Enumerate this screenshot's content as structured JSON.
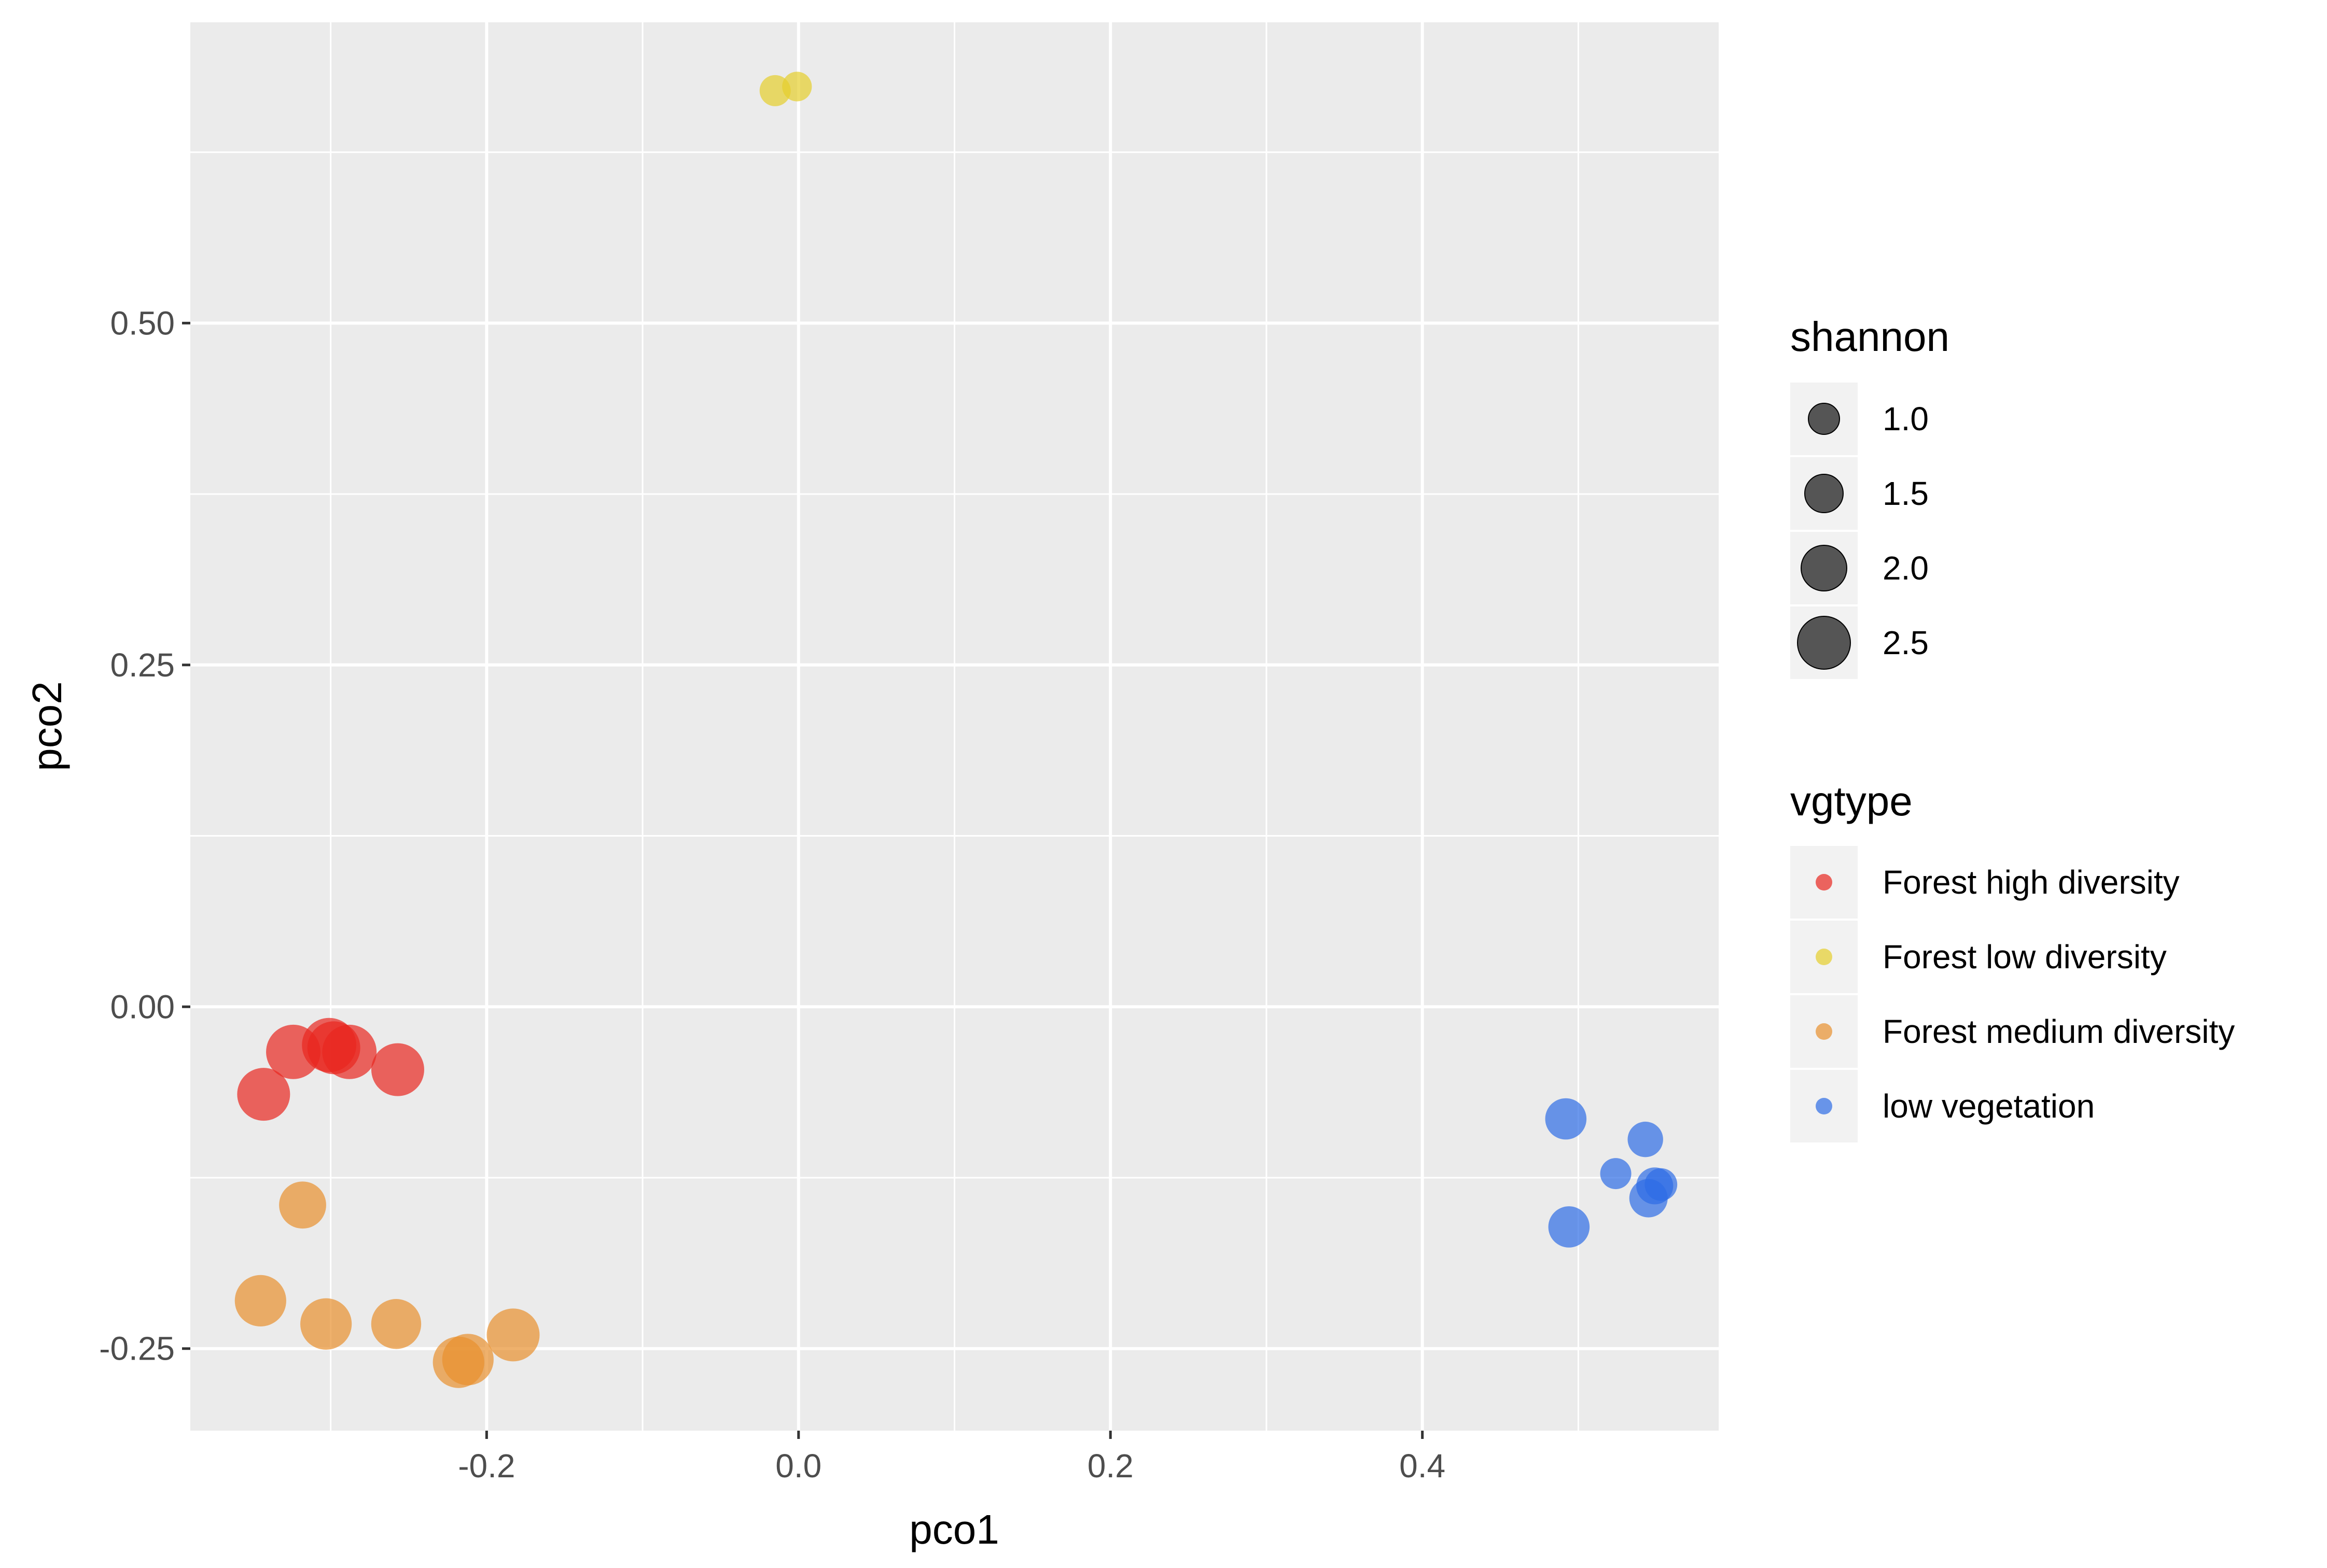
{
  "chart_data": {
    "type": "scatter",
    "xlabel": "pco1",
    "ylabel": "pco2",
    "xlim": [
      -0.39,
      0.59
    ],
    "ylim": [
      -0.31,
      0.72
    ],
    "x_ticks": [
      {
        "value": -0.2,
        "label": "-0.2"
      },
      {
        "value": 0.0,
        "label": "0.0"
      },
      {
        "value": 0.2,
        "label": "0.2"
      },
      {
        "value": 0.4,
        "label": "0.4"
      }
    ],
    "y_ticks": [
      {
        "value": -0.25,
        "label": "-0.25"
      },
      {
        "value": 0.0,
        "label": "0.00"
      },
      {
        "value": 0.25,
        "label": "0.25"
      },
      {
        "value": 0.5,
        "label": "0.50"
      }
    ],
    "grid": true,
    "legend_position": "right",
    "size_legend": {
      "title": "shannon",
      "items": [
        {
          "label": "1.0",
          "value": 1.0
        },
        {
          "label": "1.5",
          "value": 1.5
        },
        {
          "label": "2.0",
          "value": 2.0
        },
        {
          "label": "2.5",
          "value": 2.5
        }
      ]
    },
    "color_legend": {
      "title": "vgtype",
      "items": [
        {
          "label": "Forest high diversity",
          "color": "#E8261F"
        },
        {
          "label": "Forest low diversity",
          "color": "#E5CF2C"
        },
        {
          "label": "Forest medium diversity",
          "color": "#E8902E"
        },
        {
          "label": "low vegetation",
          "color": "#2E6CE5"
        }
      ]
    },
    "series": [
      {
        "name": "Forest high diversity",
        "points": [
          {
            "x": -0.343,
            "y": -0.064,
            "shannon": 2.5
          },
          {
            "x": -0.324,
            "y": -0.033,
            "shannon": 2.6
          },
          {
            "x": -0.301,
            "y": -0.028,
            "shannon": 2.6
          },
          {
            "x": -0.298,
            "y": -0.03,
            "shannon": 2.5
          },
          {
            "x": -0.288,
            "y": -0.033,
            "shannon": 2.6
          },
          {
            "x": -0.257,
            "y": -0.046,
            "shannon": 2.5
          }
        ]
      },
      {
        "name": "Forest low diversity",
        "points": [
          {
            "x": -0.015,
            "y": 0.67,
            "shannon": 1.0
          },
          {
            "x": -0.001,
            "y": 0.673,
            "shannon": 0.9
          }
        ]
      },
      {
        "name": "Forest medium diversity",
        "points": [
          {
            "x": -0.318,
            "y": -0.145,
            "shannon": 2.1
          },
          {
            "x": -0.345,
            "y": -0.215,
            "shannon": 2.4
          },
          {
            "x": -0.303,
            "y": -0.232,
            "shannon": 2.4
          },
          {
            "x": -0.258,
            "y": -0.232,
            "shannon": 2.3
          },
          {
            "x": -0.218,
            "y": -0.26,
            "shannon": 2.4
          },
          {
            "x": -0.212,
            "y": -0.258,
            "shannon": 2.4
          },
          {
            "x": -0.183,
            "y": -0.24,
            "shannon": 2.5
          }
        ]
      },
      {
        "name": "low vegetation",
        "points": [
          {
            "x": 0.492,
            "y": -0.082,
            "shannon": 1.7
          },
          {
            "x": 0.494,
            "y": -0.161,
            "shannon": 1.7
          },
          {
            "x": 0.524,
            "y": -0.122,
            "shannon": 1.0
          },
          {
            "x": 0.543,
            "y": -0.097,
            "shannon": 1.3
          },
          {
            "x": 0.545,
            "y": -0.14,
            "shannon": 1.5
          },
          {
            "x": 0.549,
            "y": -0.131,
            "shannon": 1.4
          },
          {
            "x": 0.553,
            "y": -0.13,
            "shannon": 1.1
          }
        ]
      }
    ]
  }
}
